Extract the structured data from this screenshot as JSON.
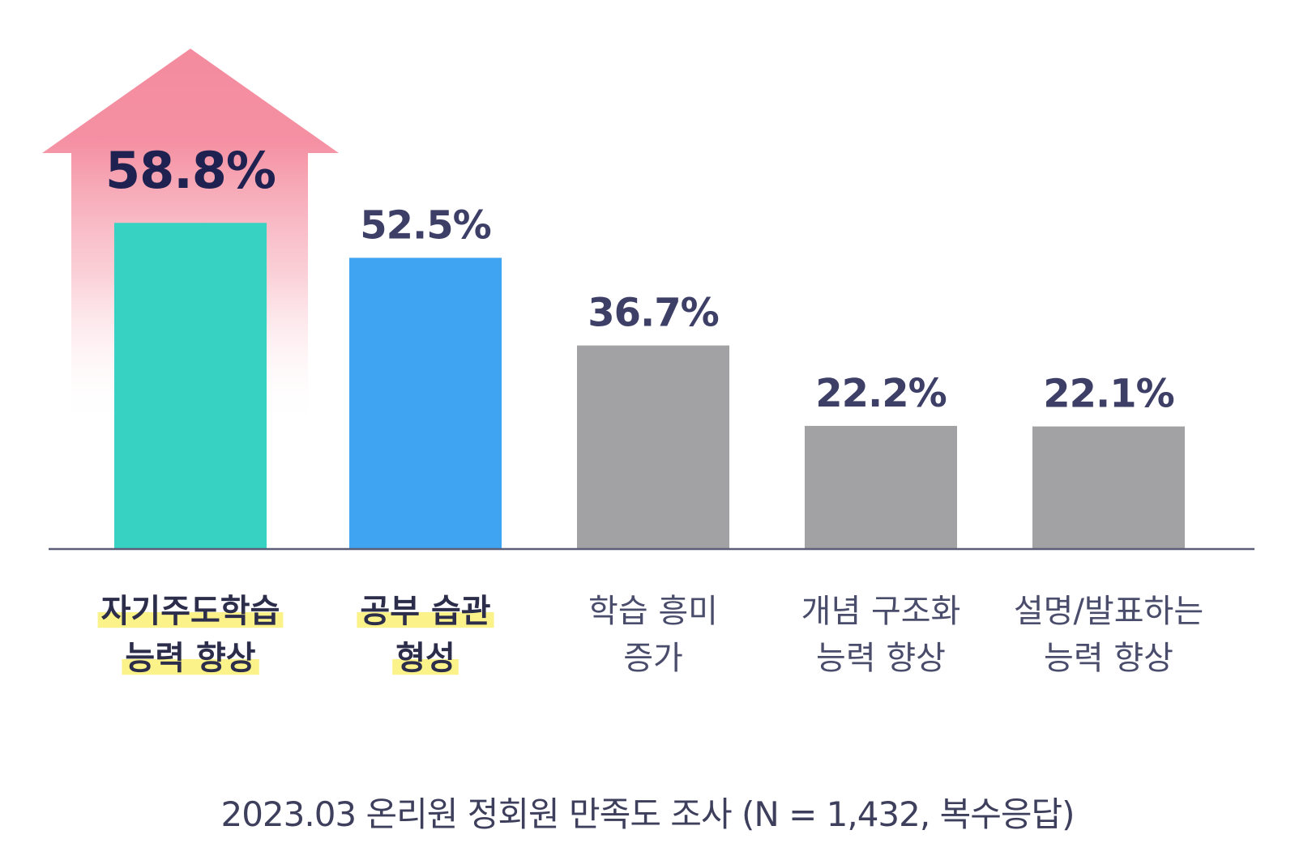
{
  "chart_data": {
    "type": "bar",
    "categories": [
      [
        "자기주도학습",
        "능력 향상"
      ],
      [
        "공부 습관",
        "형성"
      ],
      [
        "학습 흥미",
        "증가"
      ],
      [
        "개념 구조화",
        "능력 향상"
      ],
      [
        "설명/발표하는",
        "능력 향상"
      ]
    ],
    "values": [
      58.8,
      52.5,
      36.7,
      22.2,
      22.1
    ],
    "value_labels": [
      "58.8%",
      "52.5%",
      "36.7%",
      "22.2%",
      "22.1%"
    ],
    "highlighted_categories": [
      0,
      1
    ],
    "bar_colors": [
      "#38d2c2",
      "#3fa4f2",
      "#a2a2a4",
      "#a2a2a4",
      "#a2a2a4"
    ],
    "highlight_color": "#fbf28a",
    "arrow_color": "#f48b9e",
    "axis_color": "#5b5d79",
    "ylim": [
      0,
      100
    ],
    "grid": false,
    "legend": "none",
    "note": "2023.03 온리원 정회원 만족도 조사 (N = 1,432, 복수응답)"
  }
}
